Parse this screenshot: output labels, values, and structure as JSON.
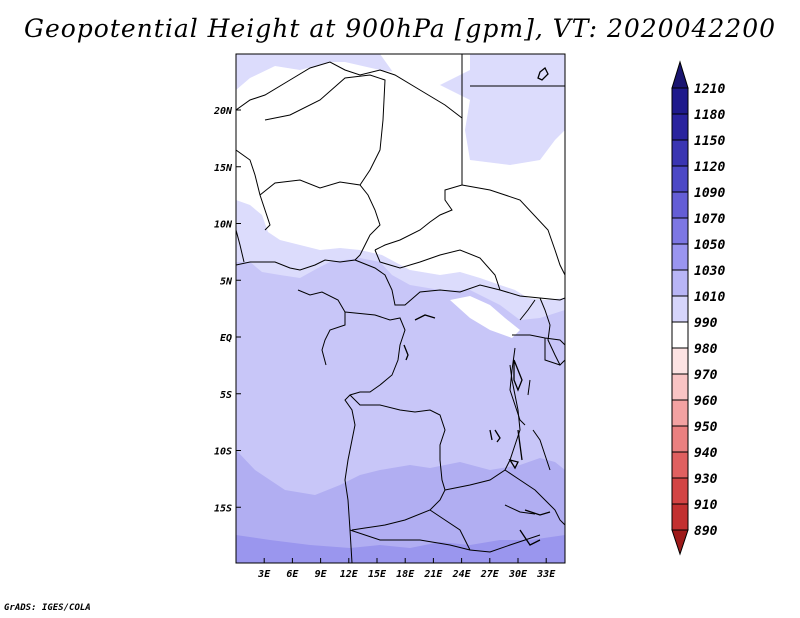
{
  "title": "Geopotential Height at 900hPa [gpm], VT: 2020042200",
  "footer": "GrADS: IGES/COLA",
  "map": {
    "lon_range": [
      0,
      35
    ],
    "lat_range": [
      -20,
      25
    ],
    "lon_labels": [
      {
        "lon": 3,
        "label": "3E"
      },
      {
        "lon": 6,
        "label": "6E"
      },
      {
        "lon": 9,
        "label": "9E"
      },
      {
        "lon": 12,
        "label": "12E"
      },
      {
        "lon": 15,
        "label": "15E"
      },
      {
        "lon": 18,
        "label": "18E"
      },
      {
        "lon": 21,
        "label": "21E"
      },
      {
        "lon": 24,
        "label": "24E"
      },
      {
        "lon": 27,
        "label": "27E"
      },
      {
        "lon": 30,
        "label": "30E"
      },
      {
        "lon": 33,
        "label": "33E"
      }
    ],
    "lat_labels": [
      {
        "lat": 20,
        "label": "20N"
      },
      {
        "lat": 15,
        "label": "15N"
      },
      {
        "lat": 10,
        "label": "10N"
      },
      {
        "lat": 5,
        "label": "5N"
      },
      {
        "lat": 0,
        "label": "EQ"
      },
      {
        "lat": -5,
        "label": "5S"
      },
      {
        "lat": -10,
        "label": "10S"
      },
      {
        "lat": -15,
        "label": "15S"
      }
    ]
  },
  "colorbar": {
    "levels": [
      {
        "label": "1210",
        "color": "#1f1a8c"
      },
      {
        "label": "1180",
        "color": "#2a239e"
      },
      {
        "label": "1150",
        "color": "#3a35b2"
      },
      {
        "label": "1120",
        "color": "#4c48c6"
      },
      {
        "label": "1090",
        "color": "#645ed6"
      },
      {
        "label": "1070",
        "color": "#7d77e4"
      },
      {
        "label": "1050",
        "color": "#9a95f0"
      },
      {
        "label": "1030",
        "color": "#b8b5f6"
      },
      {
        "label": "1010",
        "color": "#d6d5fb"
      },
      {
        "label": "990",
        "color": "#ffffff"
      },
      {
        "label": "980",
        "color": "#fde3e3"
      },
      {
        "label": "970",
        "color": "#f9c4c4"
      },
      {
        "label": "960",
        "color": "#f3a2a2"
      },
      {
        "label": "950",
        "color": "#ea8080"
      },
      {
        "label": "940",
        "color": "#e06060"
      },
      {
        "label": "930",
        "color": "#d34444"
      },
      {
        "label": "910",
        "color": "#c23030"
      },
      {
        "label": "890",
        "color": "#b01e1e"
      }
    ],
    "top_color": "#1a1570",
    "bottom_color": "#9e1a1a"
  },
  "fill_colors": {
    "white": "#ffffff",
    "c1010": "#dcdcfc",
    "c1030": "#c8c6f8",
    "c1050": "#b1aef2",
    "c1070": "#9a96ee"
  }
}
